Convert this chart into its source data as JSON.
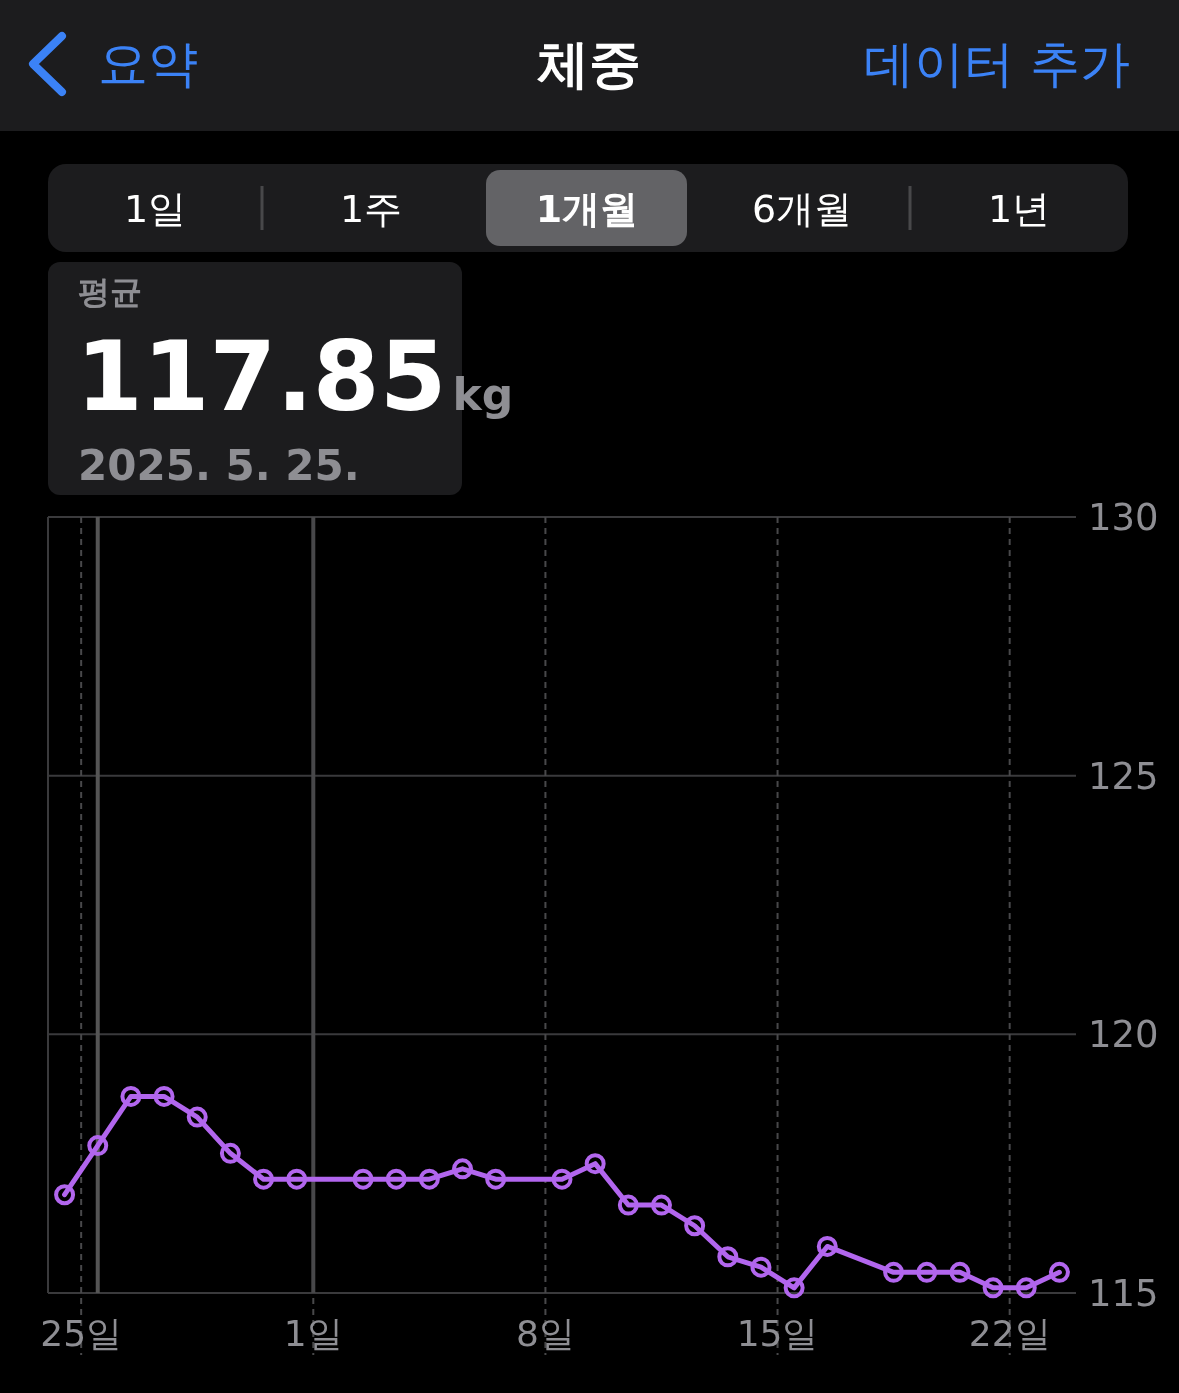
{
  "chart_data": {
    "type": "line",
    "title": "체중",
    "annotations": [
      "요약",
      "데이터 추가",
      "1일",
      "1주",
      "1개월",
      "6개월",
      "1년",
      "평균",
      "117.85",
      "kg",
      "2025. 5. 25."
    ],
    "x": [
      "2025-05-24T12:00",
      "2025-05-25T12:00",
      "2025-05-26T12:00",
      "2025-05-27T12:00",
      "2025-05-28T12:00",
      "2025-05-29T12:00",
      "2025-05-30T12:00",
      "2025-05-31T12:00",
      "2025-06-02T12:00",
      "2025-06-03T12:00",
      "2025-06-04T12:00",
      "2025-06-05T12:00",
      "2025-06-06T12:00",
      "2025-06-08T12:00",
      "2025-06-09T12:00",
      "2025-06-10T12:00",
      "2025-06-11T12:00",
      "2025-06-12T12:00",
      "2025-06-13T12:00",
      "2025-06-14T12:00",
      "2025-06-15T12:00",
      "2025-06-16T12:00",
      "2025-06-18T12:00",
      "2025-06-19T12:00",
      "2025-06-20T12:00",
      "2025-06-21T12:00",
      "2025-06-22T12:00",
      "2025-06-23T12:00"
    ],
    "series": [
      {
        "color": "#b266ee",
        "values": [
          116.9,
          117.85,
          118.8,
          118.8,
          118.4,
          117.7,
          117.2,
          117.2,
          117.2,
          117.2,
          117.2,
          117.4,
          117.2,
          117.2,
          117.5,
          116.7,
          116.7,
          116.3,
          115.7,
          115.5,
          115.1,
          115.9,
          115.4,
          115.4,
          115.4,
          115.1,
          115.1,
          115.4
        ]
      }
    ],
    "xlim": [
      "2025-05-24",
      "2025-06-24"
    ],
    "xticks": [
      {
        "value": "2025-05-25",
        "label": "25일"
      },
      {
        "value": "2025-06-01",
        "label": "1일"
      },
      {
        "value": "2025-06-08",
        "label": "8일"
      },
      {
        "value": "2025-06-15",
        "label": "15일"
      },
      {
        "value": "2025-06-22",
        "label": "22일"
      }
    ],
    "ylim": [
      115,
      130
    ],
    "yticks": [
      115,
      120,
      125,
      130
    ],
    "ref_lines": [
      {
        "axis": "x",
        "value": "2025-05-25T12:00",
        "color": "#555555"
      },
      {
        "axis": "x",
        "value": "2025-06-01",
        "color": "#48484a"
      }
    ],
    "grid": true,
    "marker": "circle",
    "line_style": "solid"
  }
}
